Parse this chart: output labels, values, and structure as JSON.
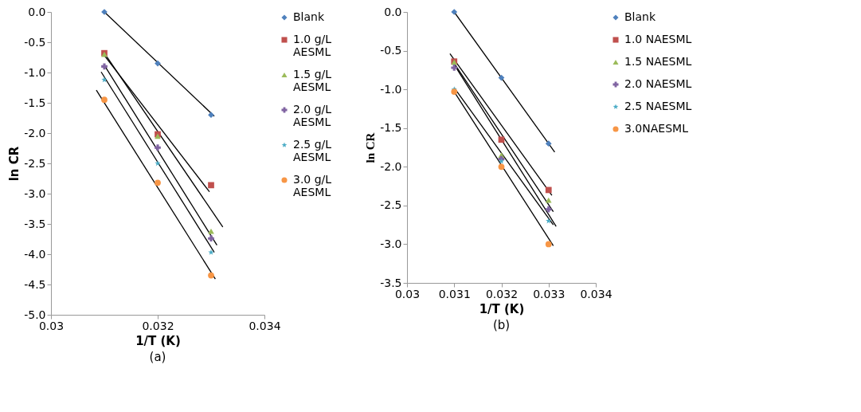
{
  "chart_data": [
    {
      "type": "scatter",
      "xlabel": "1/T (K)",
      "ylabel": "ln CR",
      "annotations": [
        "(a)"
      ],
      "x": [
        0.031,
        0.032,
        0.033
      ],
      "xlim": [
        0.03,
        0.034
      ],
      "xticks": [
        0.03,
        0.032,
        0.034
      ],
      "ylim": [
        -5,
        0
      ],
      "yticks": [
        {
          "value": -5,
          "label": "-5.0"
        },
        {
          "value": -4.5,
          "label": "-4.5"
        },
        {
          "value": -4,
          "label": "-4.0"
        },
        {
          "value": -3.5,
          "label": "-3.5"
        },
        {
          "value": -3,
          "label": "-3.0"
        },
        {
          "value": -2.5,
          "label": "-2.5"
        },
        {
          "value": -2,
          "label": "-2.0"
        },
        {
          "value": -1.5,
          "label": "-1.5"
        },
        {
          "value": -1,
          "label": "-1.0"
        },
        {
          "value": -0.5,
          "label": "-0.5"
        },
        {
          "value": 0,
          "label": "0.0"
        }
      ],
      "grid": false,
      "legend": "right",
      "series": [
        {
          "name": "Blank",
          "color": "#4f81bd",
          "marker": "diamond",
          "values": [
            0,
            -0.85,
            -1.7
          ]
        },
        {
          "name": "1.0 g/L AESML",
          "color": "#c0504d",
          "marker": "square",
          "values": [
            -0.68,
            -2.02,
            -2.86
          ]
        },
        {
          "name": "1.5 g/L AESML",
          "color": "#9bbb59",
          "marker": "triangle",
          "values": [
            -0.7,
            -2.05,
            -3.62
          ]
        },
        {
          "name": "2.0 g/L AESML",
          "color": "#8064a2",
          "marker": "cross",
          "values": [
            -0.9,
            -2.24,
            -3.74
          ]
        },
        {
          "name": "2.5 g/L AESML",
          "color": "#4bacc6",
          "marker": "star",
          "values": [
            -1.12,
            -2.5,
            -3.97
          ]
        },
        {
          "name": "3.0 g/L AESML",
          "color": "#f79646",
          "marker": "circle",
          "values": [
            -1.45,
            -2.82,
            -4.35
          ]
        },
        {
          "type": "line",
          "color": "#000000",
          "x": [
            0.031,
            0.03306
          ],
          "values": [
            0,
            -1.72
          ]
        },
        {
          "type": "line",
          "color": "#000000",
          "x": [
            0.031,
            0.03297
          ],
          "values": [
            -0.72,
            -2.97
          ]
        },
        {
          "type": "line",
          "color": "#000000",
          "x": [
            0.031,
            0.03322
          ],
          "values": [
            -0.68,
            -3.55
          ]
        },
        {
          "type": "line",
          "color": "#000000",
          "x": [
            0.031,
            0.03311
          ],
          "values": [
            -0.88,
            -3.85
          ]
        },
        {
          "type": "line",
          "color": "#000000",
          "x": [
            0.03094,
            0.03306
          ],
          "values": [
            -0.99,
            -3.97
          ]
        },
        {
          "type": "line",
          "color": "#000000",
          "x": [
            0.03085,
            0.03308
          ],
          "values": [
            -1.29,
            -4.41
          ]
        }
      ]
    },
    {
      "type": "scatter",
      "xlabel": "1/T (K)",
      "ylabel": "ln CR",
      "annotations": [
        "(b)"
      ],
      "x": [
        0.031,
        0.032,
        0.033
      ],
      "xlim": [
        0.03,
        0.034
      ],
      "xticks": [
        0.03,
        0.031,
        0.032,
        0.033,
        0.034
      ],
      "ylim": [
        -3.5,
        0
      ],
      "yticks": [
        {
          "value": -3.5,
          "label": "-3.5"
        },
        {
          "value": -3,
          "label": "-3.0"
        },
        {
          "value": -2.5,
          "label": "-2.5"
        },
        {
          "value": -2,
          "label": "-2.0"
        },
        {
          "value": -1.5,
          "label": "-1.5"
        },
        {
          "value": -1,
          "label": "-1.0"
        },
        {
          "value": -0.5,
          "label": "-0.5"
        },
        {
          "value": 0,
          "label": "0.0"
        }
      ],
      "grid": false,
      "legend": "right",
      "series": [
        {
          "name": "Blank",
          "color": "#4f81bd",
          "marker": "diamond",
          "values": [
            0,
            -0.85,
            -1.7
          ]
        },
        {
          "name": "1.0 NAESML",
          "color": "#c0504d",
          "marker": "square",
          "values": [
            -0.64,
            -1.65,
            -2.3
          ]
        },
        {
          "name": "1.5 NAESML",
          "color": "#9bbb59",
          "marker": "triangle",
          "values": [
            -0.65,
            -1.85,
            -2.43
          ]
        },
        {
          "name": "2.0 NAESML",
          "color": "#8064a2",
          "marker": "cross",
          "values": [
            -0.72,
            -1.9,
            -2.55
          ]
        },
        {
          "name": "2.5 NAESML",
          "color": "#4bacc6",
          "marker": "star",
          "values": [
            -1.0,
            -1.93,
            -2.7
          ]
        },
        {
          "name": "3.0NAESML",
          "color": "#f79646",
          "marker": "circle",
          "values": [
            -1.03,
            -2.0,
            -3.0
          ]
        },
        {
          "type": "line",
          "color": "#000000",
          "x": [
            0.031,
            0.03313
          ],
          "values": [
            0,
            -1.81
          ]
        },
        {
          "type": "line",
          "color": "#000000",
          "x": [
            0.03091,
            0.03307
          ],
          "values": [
            -0.54,
            -2.37
          ]
        },
        {
          "type": "line",
          "color": "#000000",
          "x": [
            0.03095,
            0.0331
          ],
          "values": [
            -0.62,
            -2.58
          ]
        },
        {
          "type": "line",
          "color": "#000000",
          "x": [
            0.031,
            0.03316
          ],
          "values": [
            -0.68,
            -2.77
          ]
        },
        {
          "type": "line",
          "color": "#000000",
          "x": [
            0.031,
            0.0331
          ],
          "values": [
            -0.98,
            -2.75
          ]
        },
        {
          "type": "line",
          "color": "#000000",
          "x": [
            0.031,
            0.0331
          ],
          "values": [
            -1.03,
            -3.02
          ]
        }
      ]
    }
  ]
}
